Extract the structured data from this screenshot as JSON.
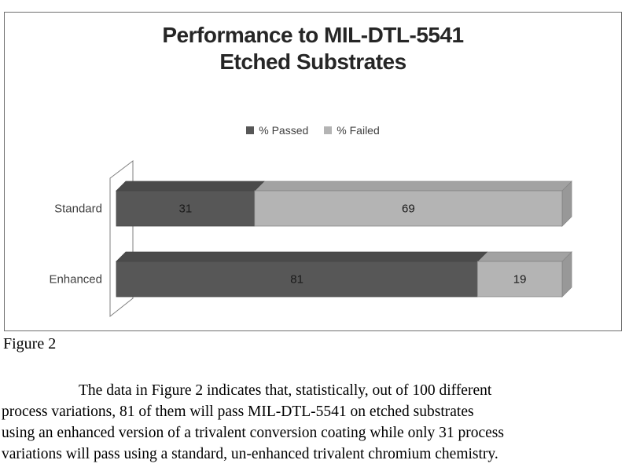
{
  "chart_data": {
    "type": "bar",
    "orientation": "horizontal",
    "stacked": true,
    "effect": "3d",
    "title": "Performance to MIL-DTL-5541",
    "subtitle": "Etched Substrates",
    "categories": [
      "Standard",
      "Enhanced"
    ],
    "series": [
      {
        "name": "% Passed",
        "values": [
          31,
          81
        ],
        "color": "#575757",
        "color_top": "#4b4b4b",
        "color_side": "#3f3f3f",
        "outline": "#454545"
      },
      {
        "name": "% Failed",
        "values": [
          69,
          19
        ],
        "color": "#b4b4b4",
        "color_top": "#a2a2a2",
        "color_side": "#989898",
        "outline": "#858585"
      }
    ],
    "xlim": [
      0,
      100
    ],
    "axes_visible": false,
    "gridlines": false,
    "legend_position": "top-center",
    "value_label_color": "#1a1a1a",
    "category_label_color": "#3f3f3f",
    "title_color": "#262626",
    "wall_outline_color": "#7f7f7f",
    "frame_border_color": "#6f6f6f"
  },
  "figure": {
    "caption": "Figure 2",
    "paragraph_lines": [
      "The data in Figure 2 indicates that, statistically, out of 100 different",
      "process variations, 81 of them will pass MIL-DTL-5541 on etched substrates",
      "using an enhanced version of a trivalent conversion coating while only 31 process",
      "variations will pass using a standard, un-enhanced trivalent chromium chemistry."
    ]
  }
}
